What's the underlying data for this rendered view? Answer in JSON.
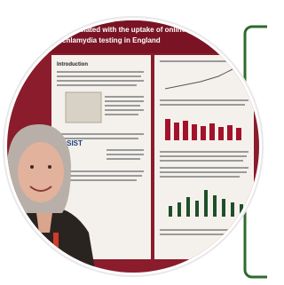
{
  "poster": {
    "title_line_1": "rs associated with the uptake of online postal se",
    "title_line_2": "chlamydia testing in England",
    "section_heading": "Introduction",
    "logo_text": "ASSIST"
  }
}
